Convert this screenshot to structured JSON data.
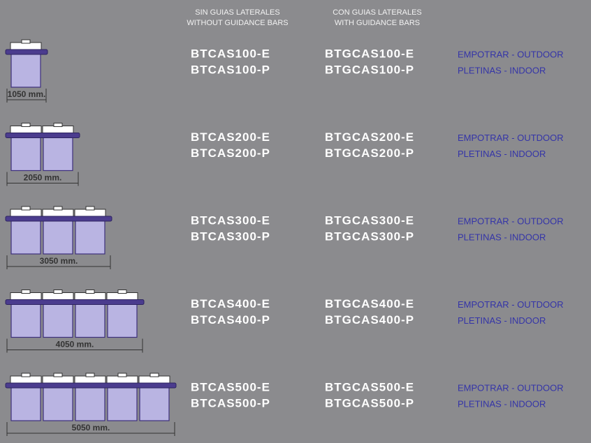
{
  "header": {
    "without": [
      "SIN GUIAS LATERALES",
      "WITHOUT GUIDANCE BARS"
    ],
    "with": [
      "CON GUIAS LATERALES",
      "WITH GUIDANCE BARS"
    ]
  },
  "rows": [
    {
      "dimension": "1050 mm.",
      "without": [
        "BTCAS100-E",
        "BTCAS100-P"
      ],
      "with": [
        "BTGCAS100-E",
        "BTGCAS100-P"
      ],
      "types": [
        "EMPOTRAR - OUTDOOR",
        "PLETINAS - INDOOR"
      ]
    },
    {
      "dimension": "2050 mm.",
      "without": [
        "BTCAS200-E",
        "BTCAS200-P"
      ],
      "with": [
        "BTGCAS200-E",
        "BTGCAS200-P"
      ],
      "types": [
        "EMPOTRAR - OUTDOOR",
        "PLETINAS - INDOOR"
      ]
    },
    {
      "dimension": "3050 mm.",
      "without": [
        "BTCAS300-E",
        "BTCAS300-P"
      ],
      "with": [
        "BTGCAS300-E",
        "BTGCAS300-P"
      ],
      "types": [
        "EMPOTRAR - OUTDOOR",
        "PLETINAS - INDOOR"
      ]
    },
    {
      "dimension": "4050 mm.",
      "without": [
        "BTCAS400-E",
        "BTCAS400-P"
      ],
      "with": [
        "BTGCAS400-E",
        "BTGCAS400-P"
      ],
      "types": [
        "EMPOTRAR - OUTDOOR",
        "PLETINAS - INDOOR"
      ]
    },
    {
      "dimension": "5050 mm.",
      "without": [
        "BTCAS500-E",
        "BTCAS500-P"
      ],
      "with": [
        "BTGCAS500-E",
        "BTGCAS500-P"
      ],
      "types": [
        "EMPOTRAR - OUTDOOR",
        "PLETINAS - INDOOR"
      ]
    }
  ]
}
